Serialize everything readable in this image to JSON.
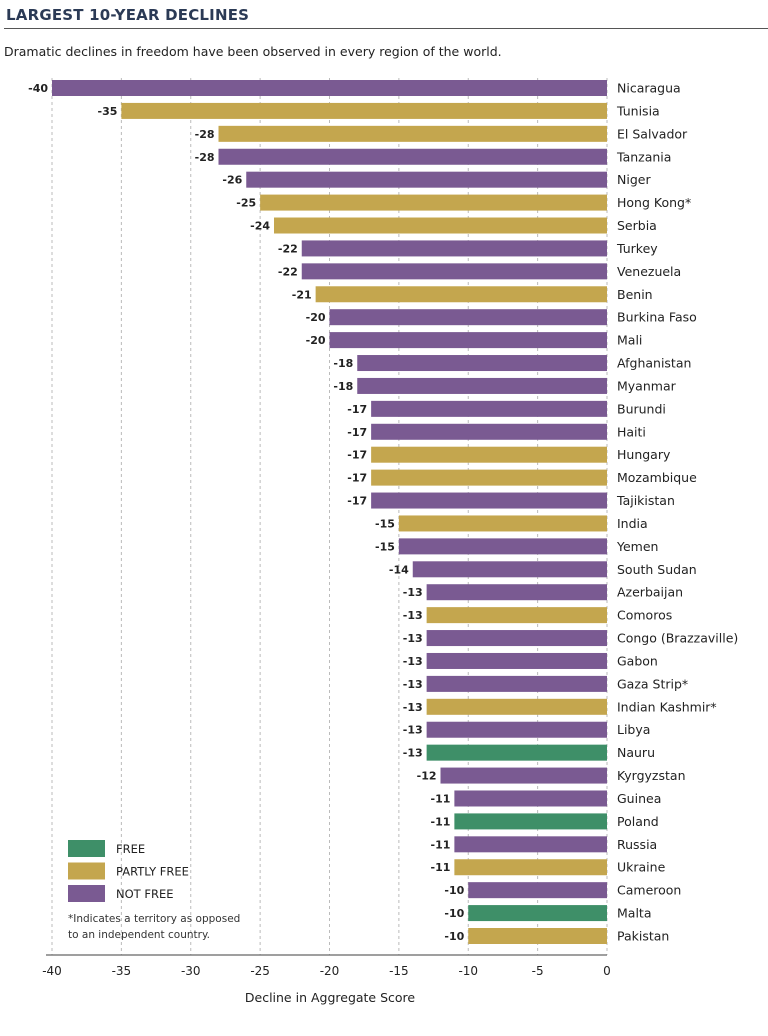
{
  "chart_data": {
    "type": "bar",
    "orientation": "horizontal",
    "title": "LARGEST 10-YEAR DECLINES",
    "subtitle": "Dramatic declines in freedom have been observed in every region of the world.",
    "xlabel": "Decline in Aggregate Score",
    "xlim": [
      -40,
      0
    ],
    "xticks": [
      "-40",
      "-35",
      "-30",
      "-25",
      "-20",
      "-15",
      "-10",
      "-5",
      "0"
    ],
    "grid": "vertical dashed",
    "legend_position": "bottom-left",
    "legend": [
      {
        "key": "F",
        "label": "FREE",
        "color": "#3e8f68"
      },
      {
        "key": "PF",
        "label": "PARTLY FREE",
        "color": "#c4a64e"
      },
      {
        "key": "NF",
        "label": "NOT FREE",
        "color": "#7a5a92"
      }
    ],
    "note": [
      "*Indicates a territory as opposed",
      "to an independent country."
    ],
    "bars": [
      {
        "category": "Nicaragua",
        "value": -40,
        "status": "NF"
      },
      {
        "category": "Tunisia",
        "value": -35,
        "status": "PF"
      },
      {
        "category": "El Salvador",
        "value": -28,
        "status": "PF"
      },
      {
        "category": "Tanzania",
        "value": -28,
        "status": "NF"
      },
      {
        "category": "Niger",
        "value": -26,
        "status": "NF"
      },
      {
        "category": "Hong Kong*",
        "value": -25,
        "status": "PF"
      },
      {
        "category": "Serbia",
        "value": -24,
        "status": "PF"
      },
      {
        "category": "Turkey",
        "value": -22,
        "status": "NF"
      },
      {
        "category": "Venezuela",
        "value": -22,
        "status": "NF"
      },
      {
        "category": "Benin",
        "value": -21,
        "status": "PF"
      },
      {
        "category": "Burkina Faso",
        "value": -20,
        "status": "NF"
      },
      {
        "category": "Mali",
        "value": -20,
        "status": "NF"
      },
      {
        "category": "Afghanistan",
        "value": -18,
        "status": "NF"
      },
      {
        "category": "Myanmar",
        "value": -18,
        "status": "NF"
      },
      {
        "category": "Burundi",
        "value": -17,
        "status": "NF"
      },
      {
        "category": "Haiti",
        "value": -17,
        "status": "NF"
      },
      {
        "category": "Hungary",
        "value": -17,
        "status": "PF"
      },
      {
        "category": "Mozambique",
        "value": -17,
        "status": "PF"
      },
      {
        "category": "Tajikistan",
        "value": -17,
        "status": "NF"
      },
      {
        "category": "India",
        "value": -15,
        "status": "PF"
      },
      {
        "category": "Yemen",
        "value": -15,
        "status": "NF"
      },
      {
        "category": "South Sudan",
        "value": -14,
        "status": "NF"
      },
      {
        "category": "Azerbaijan",
        "value": -13,
        "status": "NF"
      },
      {
        "category": "Comoros",
        "value": -13,
        "status": "PF"
      },
      {
        "category": "Congo (Brazzaville)",
        "value": -13,
        "status": "NF"
      },
      {
        "category": "Gabon",
        "value": -13,
        "status": "NF"
      },
      {
        "category": "Gaza Strip*",
        "value": -13,
        "status": "NF"
      },
      {
        "category": "Indian Kashmir*",
        "value": -13,
        "status": "PF"
      },
      {
        "category": "Libya",
        "value": -13,
        "status": "NF"
      },
      {
        "category": "Nauru",
        "value": -13,
        "status": "F"
      },
      {
        "category": "Kyrgyzstan",
        "value": -12,
        "status": "NF"
      },
      {
        "category": "Guinea",
        "value": -11,
        "status": "NF"
      },
      {
        "category": "Poland",
        "value": -11,
        "status": "F"
      },
      {
        "category": "Russia",
        "value": -11,
        "status": "NF"
      },
      {
        "category": "Ukraine",
        "value": -11,
        "status": "PF"
      },
      {
        "category": "Cameroon",
        "value": -10,
        "status": "NF"
      },
      {
        "category": "Malta",
        "value": -10,
        "status": "F"
      },
      {
        "category": "Pakistan",
        "value": -10,
        "status": "PF"
      }
    ]
  }
}
